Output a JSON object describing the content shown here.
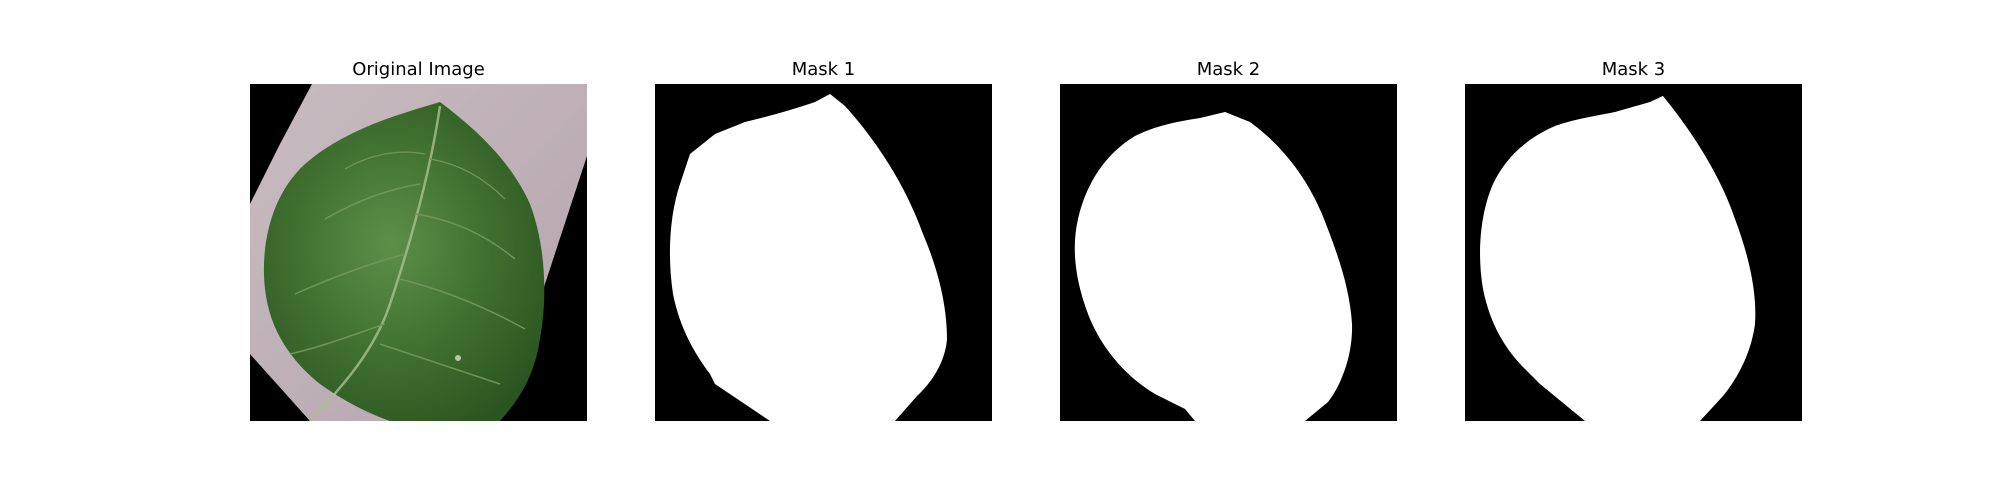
{
  "figure": {
    "panels": [
      {
        "title": "Original Image"
      },
      {
        "title": "Mask 1"
      },
      {
        "title": "Mask 2"
      },
      {
        "title": "Mask 3"
      }
    ]
  },
  "colors": {
    "background": "#000000",
    "mask_fill": "#ffffff",
    "leaf_green": "#3f6f2e",
    "paper": "#bcaeb4"
  }
}
